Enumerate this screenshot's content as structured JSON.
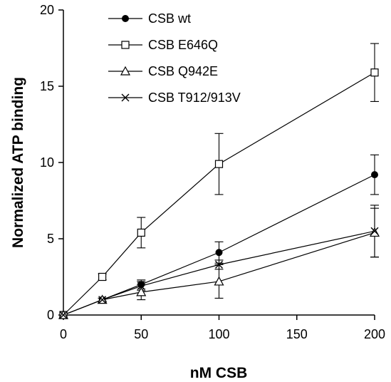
{
  "chart_data": {
    "type": "line",
    "xlabel": "nM CSB",
    "ylabel": "Normalized ATP binding",
    "xlim": [
      0,
      200
    ],
    "ylim": [
      0,
      20
    ],
    "xticks": [
      0,
      50,
      100,
      150,
      200
    ],
    "yticks": [
      0,
      5,
      10,
      15,
      20
    ],
    "grid": false,
    "legend_position": "top-left",
    "series": [
      {
        "name": "CSB wt",
        "marker": "filled-circle",
        "x": [
          0,
          25,
          50,
          100,
          200
        ],
        "y": [
          0,
          1.0,
          2.0,
          4.1,
          9.2
        ],
        "err": [
          0,
          0.1,
          0.3,
          0.7,
          1.3
        ]
      },
      {
        "name": "CSB E646Q",
        "marker": "open-square",
        "x": [
          0,
          25,
          50,
          100,
          200
        ],
        "y": [
          0,
          2.5,
          5.4,
          9.9,
          15.9
        ],
        "err": [
          0,
          0.2,
          1.0,
          2.0,
          1.9
        ]
      },
      {
        "name": "CSB Q942E",
        "marker": "open-triangle",
        "x": [
          0,
          25,
          50,
          100,
          200
        ],
        "y": [
          0,
          1.0,
          1.5,
          2.2,
          5.4
        ],
        "err": [
          0,
          0.1,
          0.5,
          1.1,
          1.6
        ]
      },
      {
        "name": "CSB T912/913V",
        "marker": "x-cross",
        "x": [
          0,
          25,
          50,
          100,
          200
        ],
        "y": [
          0,
          1.0,
          1.9,
          3.3,
          5.5
        ],
        "err": [
          0,
          0.1,
          0.3,
          0.3,
          1.7
        ]
      }
    ]
  }
}
